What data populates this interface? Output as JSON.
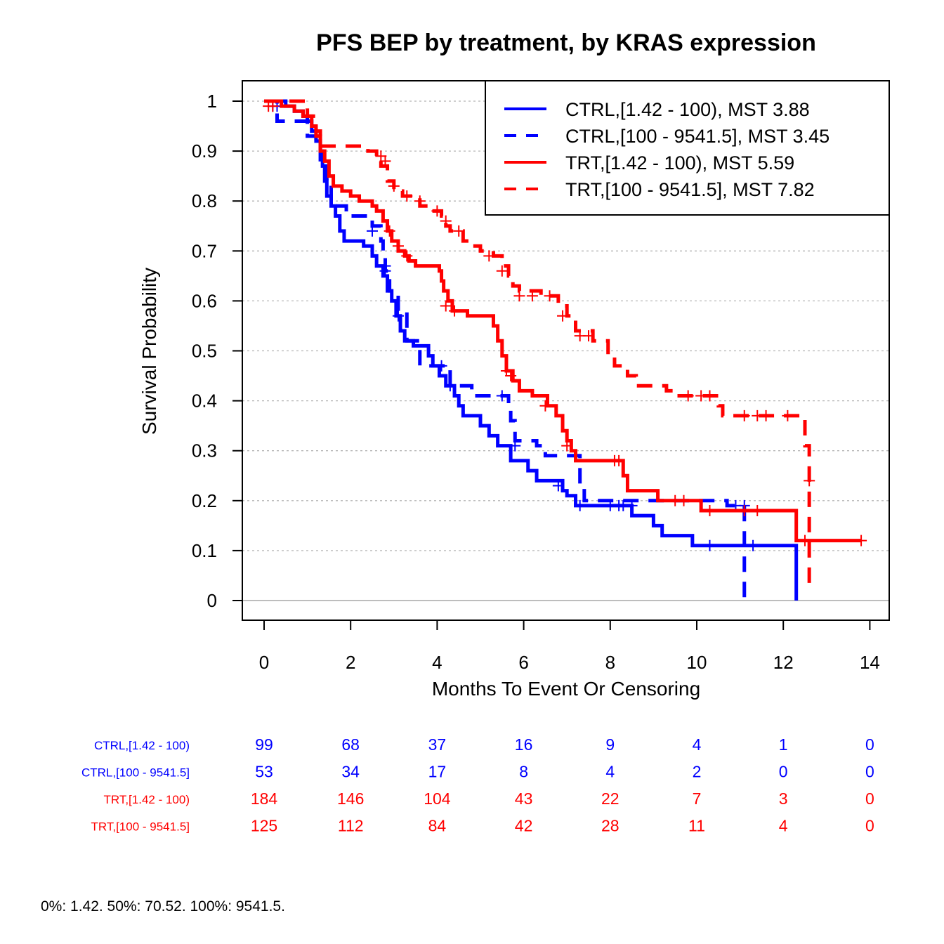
{
  "chart_data": {
    "type": "line",
    "title": "PFS BEP by treatment, by KRAS expression",
    "xlabel": "Months To Event Or Censoring",
    "ylabel": "Survival Probability",
    "xlim": [
      0,
      14
    ],
    "ylim": [
      0,
      1
    ],
    "x_ticks": [
      "0",
      "2",
      "4",
      "6",
      "8",
      "10",
      "12",
      "14"
    ],
    "y_ticks": [
      "0",
      "0.1",
      "0.2",
      "0.3",
      "0.4",
      "0.5",
      "0.6",
      "0.7",
      "0.8",
      "0.9",
      "1"
    ],
    "grid": "horizontal dotted",
    "legend_position": "top-right",
    "series": [
      {
        "name": "CTRL,[1.42 - 100), MST 3.88",
        "color": "#0000ff",
        "dash": "solid",
        "steps": [
          [
            0,
            1
          ],
          [
            0.5,
            0.99
          ],
          [
            0.7,
            0.98
          ],
          [
            0.9,
            0.97
          ],
          [
            1.0,
            0.96
          ],
          [
            1.1,
            0.94
          ],
          [
            1.2,
            0.92
          ],
          [
            1.3,
            0.9
          ],
          [
            1.35,
            0.87
          ],
          [
            1.4,
            0.84
          ],
          [
            1.45,
            0.81
          ],
          [
            1.55,
            0.79
          ],
          [
            1.65,
            0.77
          ],
          [
            1.75,
            0.74
          ],
          [
            1.85,
            0.72
          ],
          [
            2.3,
            0.71
          ],
          [
            2.5,
            0.69
          ],
          [
            2.6,
            0.67
          ],
          [
            2.75,
            0.65
          ],
          [
            2.85,
            0.62
          ],
          [
            2.95,
            0.6
          ],
          [
            3.05,
            0.57
          ],
          [
            3.15,
            0.54
          ],
          [
            3.25,
            0.52
          ],
          [
            3.45,
            0.51
          ],
          [
            3.8,
            0.49
          ],
          [
            3.9,
            0.47
          ],
          [
            4.05,
            0.45
          ],
          [
            4.2,
            0.43
          ],
          [
            4.4,
            0.41
          ],
          [
            4.5,
            0.39
          ],
          [
            4.6,
            0.37
          ],
          [
            5.0,
            0.35
          ],
          [
            5.2,
            0.33
          ],
          [
            5.4,
            0.31
          ],
          [
            5.7,
            0.28
          ],
          [
            6.1,
            0.26
          ],
          [
            6.3,
            0.24
          ],
          [
            6.9,
            0.22
          ],
          [
            7.0,
            0.21
          ],
          [
            7.2,
            0.19
          ],
          [
            8.5,
            0.17
          ],
          [
            9.0,
            0.15
          ],
          [
            9.2,
            0.13
          ],
          [
            9.9,
            0.11
          ],
          [
            12.3,
            0.0
          ]
        ],
        "censor": [
          [
            0.3,
            0.99
          ],
          [
            2.8,
            0.66
          ],
          [
            3.1,
            0.57
          ],
          [
            7.3,
            0.19
          ],
          [
            8.2,
            0.19
          ],
          [
            8.3,
            0.19
          ],
          [
            10.3,
            0.11
          ],
          [
            11.3,
            0.11
          ]
        ]
      },
      {
        "name": "CTRL,[100 - 9541.5], MST 3.45",
        "color": "#0000ff",
        "dash": "dashed",
        "steps": [
          [
            0,
            1
          ],
          [
            0.3,
            0.96
          ],
          [
            1.0,
            0.93
          ],
          [
            1.2,
            0.91
          ],
          [
            1.3,
            0.87
          ],
          [
            1.45,
            0.84
          ],
          [
            1.55,
            0.79
          ],
          [
            1.9,
            0.77
          ],
          [
            2.5,
            0.75
          ],
          [
            2.7,
            0.72
          ],
          [
            2.75,
            0.7
          ],
          [
            2.8,
            0.66
          ],
          [
            2.9,
            0.62
          ],
          [
            3.1,
            0.58
          ],
          [
            3.3,
            0.52
          ],
          [
            3.6,
            0.47
          ],
          [
            4.0,
            0.47
          ],
          [
            4.3,
            0.43
          ],
          [
            4.8,
            0.41
          ],
          [
            5.65,
            0.38
          ],
          [
            5.7,
            0.36
          ],
          [
            5.8,
            0.32
          ],
          [
            6.3,
            0.31
          ],
          [
            6.5,
            0.29
          ],
          [
            7.3,
            0.23
          ],
          [
            7.4,
            0.2
          ],
          [
            10.7,
            0.19
          ],
          [
            11.1,
            0.0
          ]
        ],
        "censor": [
          [
            0.2,
            0.99
          ],
          [
            2.5,
            0.74
          ],
          [
            2.8,
            0.67
          ],
          [
            4.1,
            0.47
          ],
          [
            4.3,
            0.43
          ],
          [
            5.5,
            0.41
          ],
          [
            5.8,
            0.31
          ],
          [
            6.8,
            0.23
          ],
          [
            8.0,
            0.19
          ],
          [
            8.5,
            0.19
          ],
          [
            10.9,
            0.19
          ],
          [
            11.1,
            0.19
          ]
        ]
      },
      {
        "name": "TRT,[1.42 - 100), MST 5.59",
        "color": "#ff0000",
        "dash": "solid",
        "steps": [
          [
            0,
            1
          ],
          [
            0.4,
            0.99
          ],
          [
            0.7,
            0.98
          ],
          [
            0.9,
            0.97
          ],
          [
            1.1,
            0.95
          ],
          [
            1.2,
            0.93
          ],
          [
            1.3,
            0.9
          ],
          [
            1.4,
            0.88
          ],
          [
            1.5,
            0.85
          ],
          [
            1.6,
            0.83
          ],
          [
            1.8,
            0.82
          ],
          [
            2.0,
            0.81
          ],
          [
            2.2,
            0.8
          ],
          [
            2.5,
            0.79
          ],
          [
            2.6,
            0.78
          ],
          [
            2.75,
            0.76
          ],
          [
            2.85,
            0.74
          ],
          [
            2.95,
            0.72
          ],
          [
            3.1,
            0.7
          ],
          [
            3.25,
            0.69
          ],
          [
            3.35,
            0.68
          ],
          [
            3.5,
            0.67
          ],
          [
            4.05,
            0.66
          ],
          [
            4.1,
            0.64
          ],
          [
            4.15,
            0.62
          ],
          [
            4.25,
            0.6
          ],
          [
            4.35,
            0.58
          ],
          [
            4.7,
            0.57
          ],
          [
            5.3,
            0.55
          ],
          [
            5.4,
            0.52
          ],
          [
            5.5,
            0.49
          ],
          [
            5.6,
            0.46
          ],
          [
            5.75,
            0.44
          ],
          [
            5.9,
            0.42
          ],
          [
            6.2,
            0.41
          ],
          [
            6.55,
            0.39
          ],
          [
            6.75,
            0.37
          ],
          [
            6.9,
            0.34
          ],
          [
            7.0,
            0.32
          ],
          [
            7.1,
            0.3
          ],
          [
            7.2,
            0.28
          ],
          [
            8.3,
            0.25
          ],
          [
            8.4,
            0.22
          ],
          [
            9.1,
            0.2
          ],
          [
            10.1,
            0.18
          ],
          [
            12.3,
            0.12
          ]
        ],
        "censor": [
          [
            0.1,
            0.99
          ],
          [
            2.9,
            0.74
          ],
          [
            3.1,
            0.71
          ],
          [
            3.3,
            0.69
          ],
          [
            4.2,
            0.59
          ],
          [
            4.4,
            0.58
          ],
          [
            5.6,
            0.46
          ],
          [
            5.7,
            0.45
          ],
          [
            6.5,
            0.39
          ],
          [
            7.0,
            0.31
          ],
          [
            8.1,
            0.28
          ],
          [
            8.2,
            0.28
          ],
          [
            9.5,
            0.2
          ],
          [
            9.7,
            0.2
          ],
          [
            10.3,
            0.18
          ],
          [
            11.1,
            0.18
          ],
          [
            11.4,
            0.18
          ],
          [
            12.5,
            0.12
          ],
          [
            13.8,
            0.12
          ]
        ]
      },
      {
        "name": "TRT,[100 - 9541.5], MST 7.82",
        "color": "#ff0000",
        "dash": "dashed",
        "steps": [
          [
            0,
            1
          ],
          [
            1.0,
            0.97
          ],
          [
            1.2,
            0.94
          ],
          [
            1.3,
            0.91
          ],
          [
            2.4,
            0.9
          ],
          [
            2.6,
            0.89
          ],
          [
            2.7,
            0.87
          ],
          [
            2.85,
            0.84
          ],
          [
            3.0,
            0.82
          ],
          [
            3.2,
            0.81
          ],
          [
            3.6,
            0.79
          ],
          [
            3.8,
            0.78
          ],
          [
            4.1,
            0.77
          ],
          [
            4.2,
            0.75
          ],
          [
            4.3,
            0.74
          ],
          [
            4.6,
            0.72
          ],
          [
            4.8,
            0.71
          ],
          [
            5.0,
            0.7
          ],
          [
            5.3,
            0.69
          ],
          [
            5.5,
            0.67
          ],
          [
            5.65,
            0.65
          ],
          [
            5.75,
            0.63
          ],
          [
            5.9,
            0.62
          ],
          [
            6.4,
            0.61
          ],
          [
            6.8,
            0.59
          ],
          [
            7.0,
            0.57
          ],
          [
            7.2,
            0.54
          ],
          [
            7.6,
            0.52
          ],
          [
            7.95,
            0.49
          ],
          [
            8.1,
            0.47
          ],
          [
            8.4,
            0.45
          ],
          [
            8.6,
            0.43
          ],
          [
            9.3,
            0.42
          ],
          [
            9.5,
            0.41
          ],
          [
            10.5,
            0.39
          ],
          [
            10.6,
            0.37
          ],
          [
            12.5,
            0.31
          ],
          [
            12.6,
            0.03
          ]
        ],
        "censor": [
          [
            0.2,
            0.99
          ],
          [
            2.7,
            0.89
          ],
          [
            2.8,
            0.88
          ],
          [
            3.0,
            0.83
          ],
          [
            3.3,
            0.81
          ],
          [
            3.6,
            0.8
          ],
          [
            4.0,
            0.78
          ],
          [
            4.2,
            0.76
          ],
          [
            4.5,
            0.74
          ],
          [
            5.2,
            0.69
          ],
          [
            5.5,
            0.66
          ],
          [
            5.9,
            0.61
          ],
          [
            6.2,
            0.61
          ],
          [
            6.6,
            0.61
          ],
          [
            6.9,
            0.57
          ],
          [
            7.3,
            0.53
          ],
          [
            7.5,
            0.53
          ],
          [
            9.8,
            0.41
          ],
          [
            10.1,
            0.41
          ],
          [
            10.3,
            0.41
          ],
          [
            11.1,
            0.37
          ],
          [
            11.4,
            0.37
          ],
          [
            11.6,
            0.37
          ],
          [
            12.1,
            0.37
          ],
          [
            12.6,
            0.24
          ]
        ]
      }
    ],
    "risk_table": {
      "times": [
        0,
        2,
        4,
        6,
        8,
        10,
        12,
        14
      ],
      "rows": [
        {
          "label": "CTRL,[1.42 - 100)",
          "color": "#0000ff",
          "values": [
            "99",
            "68",
            "37",
            "16",
            "9",
            "4",
            "1",
            "0"
          ]
        },
        {
          "label": "CTRL,[100 - 9541.5]",
          "color": "#0000ff",
          "values": [
            "53",
            "34",
            "17",
            "8",
            "4",
            "2",
            "0",
            "0"
          ]
        },
        {
          "label": "TRT,[1.42 - 100)",
          "color": "#ff0000",
          "values": [
            "184",
            "146",
            "104",
            "43",
            "22",
            "7",
            "3",
            "0"
          ]
        },
        {
          "label": "TRT,[100 - 9541.5]",
          "color": "#ff0000",
          "values": [
            "125",
            "112",
            "84",
            "42",
            "28",
            "11",
            "4",
            "0"
          ]
        }
      ]
    }
  },
  "footnote": "0%: 1.42. 50%: 70.52. 100%: 9541.5."
}
